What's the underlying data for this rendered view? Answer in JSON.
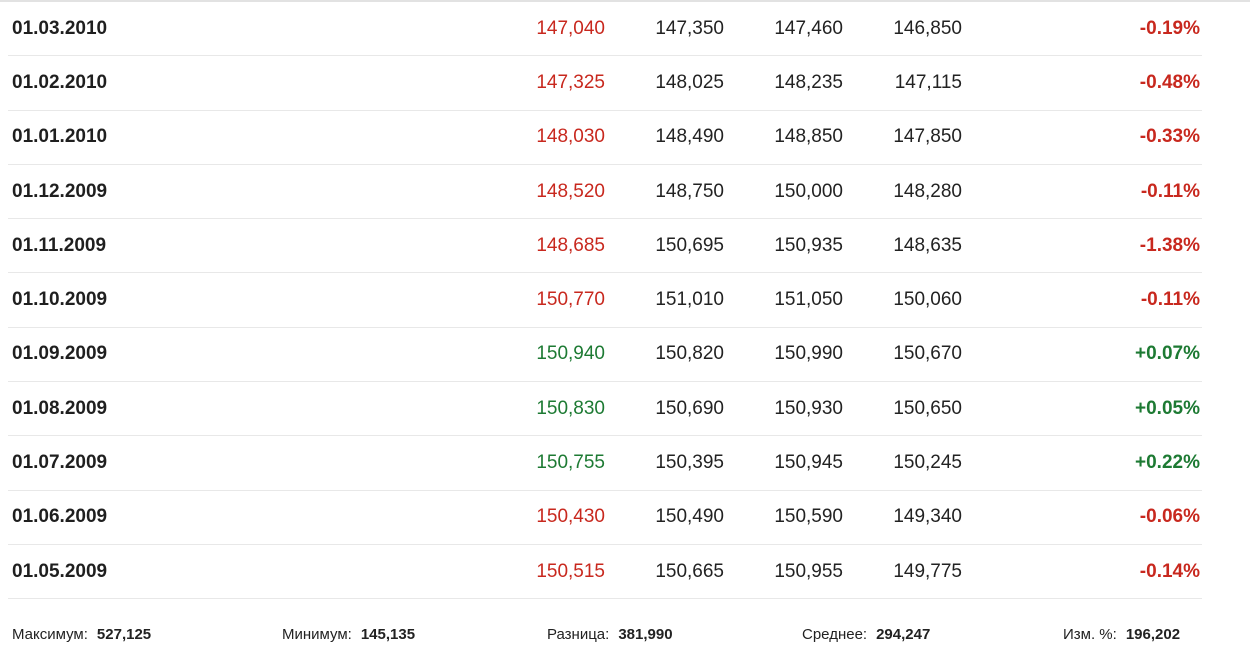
{
  "colors": {
    "down": "#c8281e",
    "up": "#1d7a33"
  },
  "rows": [
    {
      "date": "01.03.2010",
      "price": "147,040",
      "open": "147,350",
      "high": "147,460",
      "low": "146,850",
      "change": "-0.19%",
      "dir": "down"
    },
    {
      "date": "01.02.2010",
      "price": "147,325",
      "open": "148,025",
      "high": "148,235",
      "low": "147,115",
      "change": "-0.48%",
      "dir": "down"
    },
    {
      "date": "01.01.2010",
      "price": "148,030",
      "open": "148,490",
      "high": "148,850",
      "low": "147,850",
      "change": "-0.33%",
      "dir": "down"
    },
    {
      "date": "01.12.2009",
      "price": "148,520",
      "open": "148,750",
      "high": "150,000",
      "low": "148,280",
      "change": "-0.11%",
      "dir": "down"
    },
    {
      "date": "01.11.2009",
      "price": "148,685",
      "open": "150,695",
      "high": "150,935",
      "low": "148,635",
      "change": "-1.38%",
      "dir": "down"
    },
    {
      "date": "01.10.2009",
      "price": "150,770",
      "open": "151,010",
      "high": "151,050",
      "low": "150,060",
      "change": "-0.11%",
      "dir": "down"
    },
    {
      "date": "01.09.2009",
      "price": "150,940",
      "open": "150,820",
      "high": "150,990",
      "low": "150,670",
      "change": "+0.07%",
      "dir": "up"
    },
    {
      "date": "01.08.2009",
      "price": "150,830",
      "open": "150,690",
      "high": "150,930",
      "low": "150,650",
      "change": "+0.05%",
      "dir": "up"
    },
    {
      "date": "01.07.2009",
      "price": "150,755",
      "open": "150,395",
      "high": "150,945",
      "low": "150,245",
      "change": "+0.22%",
      "dir": "up"
    },
    {
      "date": "01.06.2009",
      "price": "150,430",
      "open": "150,490",
      "high": "150,590",
      "low": "149,340",
      "change": "-0.06%",
      "dir": "down"
    },
    {
      "date": "01.05.2009",
      "price": "150,515",
      "open": "150,665",
      "high": "150,955",
      "low": "149,775",
      "change": "-0.14%",
      "dir": "down"
    }
  ],
  "stats": {
    "max_label": "Максимум:",
    "max_value": "527,125",
    "min_label": "Минимум:",
    "min_value": "145,135",
    "diff_label": "Разница:",
    "diff_value": "381,990",
    "avg_label": "Среднее:",
    "avg_value": "294,247",
    "chg_label": "Изм. %:",
    "chg_value": "196,202"
  }
}
